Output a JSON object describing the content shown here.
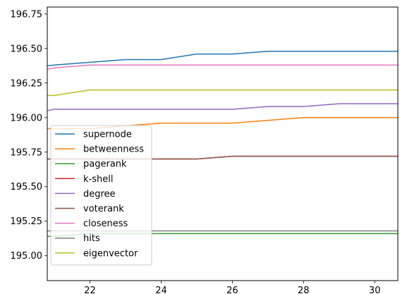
{
  "chart_data": {
    "type": "line",
    "x": [
      21,
      22,
      23,
      24,
      25,
      26,
      27,
      28,
      29,
      30,
      31
    ],
    "xlim": [
      20.8,
      30.65
    ],
    "ylim": [
      194.82,
      196.8
    ],
    "xticks": [
      "22",
      "24",
      "26",
      "28",
      "30"
    ],
    "yticks": [
      "195.00",
      "195.25",
      "195.50",
      "195.75",
      "196.00",
      "196.25",
      "196.50",
      "196.75"
    ],
    "grid": false,
    "legend_position": "lower-left",
    "series": [
      {
        "name": "supernode",
        "color": "#1f77b4",
        "x": [
          20.8,
          21,
          22,
          23,
          24,
          25,
          26,
          27,
          28,
          29,
          30,
          31
        ],
        "values": [
          196.375,
          196.38,
          196.4,
          196.42,
          196.42,
          196.46,
          196.46,
          196.48,
          196.48,
          196.48,
          196.48,
          196.48
        ]
      },
      {
        "name": "betweenness",
        "color": "#ff7f0e",
        "x": [
          20.8,
          21,
          22,
          23,
          24,
          25,
          26,
          27,
          28,
          29,
          30,
          31
        ],
        "values": [
          195.92,
          195.92,
          195.92,
          195.94,
          195.96,
          195.96,
          195.96,
          195.98,
          196.0,
          196.0,
          196.0,
          196.0
        ]
      },
      {
        "name": "pagerank",
        "color": "#2ca02c",
        "x": [
          20.8,
          21,
          22,
          23,
          24,
          25,
          26,
          27,
          28,
          29,
          30,
          31
        ],
        "values": [
          195.14,
          195.14,
          195.16,
          195.16,
          195.16,
          195.16,
          195.16,
          195.16,
          195.16,
          195.16,
          195.16,
          195.16
        ]
      },
      {
        "name": "k-shell",
        "color": "#d62728",
        "x": [
          20.8,
          21,
          22,
          23,
          24,
          25,
          26,
          27,
          28,
          29,
          30,
          31
        ],
        "values": [
          195.7,
          195.7,
          195.7,
          195.7,
          195.7,
          195.7,
          195.72,
          195.72,
          195.72,
          195.72,
          195.72,
          195.72
        ]
      },
      {
        "name": "degree",
        "color": "#9467bd",
        "x": [
          20.8,
          21,
          22,
          23,
          24,
          25,
          26,
          27,
          28,
          29,
          30,
          31
        ],
        "values": [
          196.05,
          196.06,
          196.06,
          196.06,
          196.06,
          196.06,
          196.06,
          196.08,
          196.08,
          196.1,
          196.1,
          196.1
        ]
      },
      {
        "name": "voterank",
        "color": "#8c564b",
        "x": [
          20.8,
          21,
          22,
          23,
          24,
          25,
          26,
          27,
          28,
          29,
          30,
          31
        ],
        "values": [
          195.7,
          195.7,
          195.7,
          195.7,
          195.7,
          195.7,
          195.72,
          195.72,
          195.72,
          195.72,
          195.72,
          195.72
        ]
      },
      {
        "name": "closeness",
        "color": "#e377c2",
        "x": [
          20.8,
          21,
          22,
          23,
          24,
          25,
          26,
          27,
          28,
          29,
          30,
          31
        ],
        "values": [
          196.35,
          196.36,
          196.38,
          196.38,
          196.38,
          196.38,
          196.38,
          196.38,
          196.38,
          196.38,
          196.38,
          196.38
        ]
      },
      {
        "name": "hits",
        "color": "#7f7f7f",
        "x": [
          20.8,
          21,
          22,
          23,
          24,
          25,
          26,
          27,
          28,
          29,
          30,
          31
        ],
        "values": [
          195.18,
          195.18,
          195.18,
          195.18,
          195.18,
          195.18,
          195.18,
          195.18,
          195.18,
          195.18,
          195.18,
          195.18
        ]
      },
      {
        "name": "eigenvector",
        "color": "#bcbd22",
        "x": [
          20.8,
          21,
          22,
          23,
          24,
          25,
          26,
          27,
          28,
          29,
          30,
          31
        ],
        "values": [
          196.16,
          196.16,
          196.2,
          196.2,
          196.2,
          196.2,
          196.2,
          196.2,
          196.2,
          196.2,
          196.2,
          196.2
        ]
      }
    ]
  }
}
